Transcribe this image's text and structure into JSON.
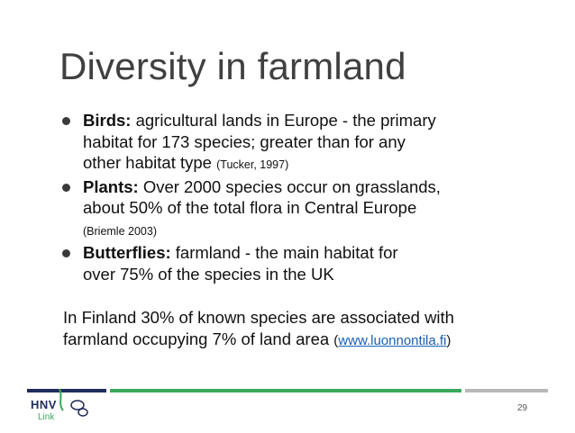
{
  "slide": {
    "title": "Diversity in farmland",
    "bullets": [
      {
        "label": "Birds:",
        "line1": " agricultural lands in Europe - the primary",
        "line2": "habitat for 173 species; greater than for any",
        "line3": "other habitat type ",
        "citation": "(Tucker, 1997)"
      },
      {
        "label": "Plants:",
        "line1": " Over 2000 species occur on grasslands,",
        "line2": "about 50% of the total flora in Central Europe",
        "citation": "(Briemle 2003)"
      },
      {
        "label": "Butterflies:",
        "line1": " farmland - the main habitat for",
        "line2": "over 75% of the species in the UK"
      }
    ],
    "note": {
      "line1": "In Finland 30% of known species are associated with",
      "line2": "farmland occupying 7% of land area ",
      "paren_open": "(",
      "link": "www.luonnontila.fi",
      "paren_close": ")"
    },
    "footer": {
      "logo_text": "HNV",
      "logo_sub": "Link",
      "page_number": "29"
    },
    "colors": {
      "navy": "#1f2b5a",
      "green": "#3aa95c",
      "gray": "#b8b8b8",
      "link": "#1a5fb4"
    }
  }
}
